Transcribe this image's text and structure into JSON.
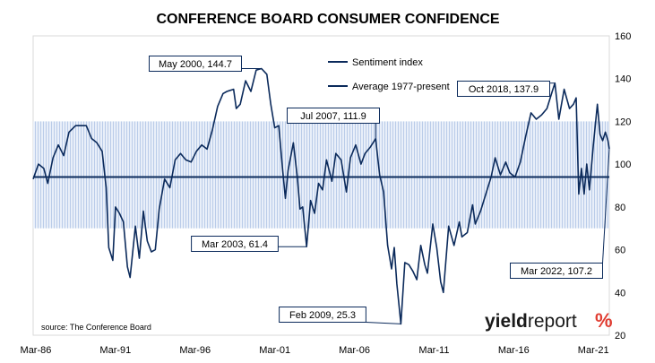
{
  "chart_data": {
    "type": "line",
    "title": "CONFERENCE BOARD CONSUMER CONFIDENCE",
    "source": "source: The Conference Board",
    "brand": {
      "text_a": "yield",
      "text_b": "report",
      "symbol": "%"
    },
    "colors": {
      "series": "#0b2a5b",
      "band": "#dce6f5",
      "band_hatch": "#aec3e6",
      "brand_red": "#e03c31",
      "brand_green": "#2ea84a",
      "text": "#000000"
    },
    "x_range": [
      "1986-01",
      "2022-03"
    ],
    "x_ticks": [
      {
        "label": "Mar-86",
        "date": "1986-03"
      },
      {
        "label": "Mar-91",
        "date": "1991-03"
      },
      {
        "label": "Mar-96",
        "date": "1996-03"
      },
      {
        "label": "Mar-01",
        "date": "2001-03"
      },
      {
        "label": "Mar-06",
        "date": "2006-03"
      },
      {
        "label": "Mar-11",
        "date": "2011-03"
      },
      {
        "label": "Mar-16",
        "date": "2016-03"
      },
      {
        "label": "Mar-21",
        "date": "2021-03"
      }
    ],
    "y_range": [
      20,
      160
    ],
    "y_ticks": [
      20,
      40,
      60,
      80,
      100,
      120,
      140,
      160
    ],
    "y_axis_position": "right",
    "grid": false,
    "band": {
      "from": 70,
      "to": 120
    },
    "series": [
      {
        "name": "Sentiment index",
        "points": [
          [
            "1986-01",
            93
          ],
          [
            "1986-05",
            100
          ],
          [
            "1986-09",
            98
          ],
          [
            "1986-12",
            91
          ],
          [
            "1987-04",
            103
          ],
          [
            "1987-08",
            109
          ],
          [
            "1987-12",
            104
          ],
          [
            "1988-04",
            115
          ],
          [
            "1988-09",
            118
          ],
          [
            "1989-01",
            118
          ],
          [
            "1989-05",
            118
          ],
          [
            "1989-09",
            112
          ],
          [
            "1990-01",
            110
          ],
          [
            "1990-05",
            106
          ],
          [
            "1990-08",
            89
          ],
          [
            "1990-10",
            61
          ],
          [
            "1991-01",
            55
          ],
          [
            "1991-03",
            80
          ],
          [
            "1991-06",
            77
          ],
          [
            "1991-09",
            73
          ],
          [
            "1991-12",
            52
          ],
          [
            "1992-02",
            47
          ],
          [
            "1992-06",
            71
          ],
          [
            "1992-09",
            56
          ],
          [
            "1992-12",
            78
          ],
          [
            "1993-03",
            64
          ],
          [
            "1993-06",
            59
          ],
          [
            "1993-09",
            60
          ],
          [
            "1993-12",
            79
          ],
          [
            "1994-04",
            93
          ],
          [
            "1994-08",
            89
          ],
          [
            "1994-12",
            102
          ],
          [
            "1995-04",
            105
          ],
          [
            "1995-08",
            102
          ],
          [
            "1995-12",
            101
          ],
          [
            "1996-04",
            106
          ],
          [
            "1996-08",
            109
          ],
          [
            "1996-12",
            107
          ],
          [
            "1997-04",
            116
          ],
          [
            "1997-08",
            127
          ],
          [
            "1997-12",
            133
          ],
          [
            "1998-03",
            134
          ],
          [
            "1998-08",
            135
          ],
          [
            "1998-10",
            126
          ],
          [
            "1999-01",
            128
          ],
          [
            "1999-05",
            139
          ],
          [
            "1999-09",
            134
          ],
          [
            "2000-01",
            144
          ],
          [
            "2000-05",
            144.7
          ],
          [
            "2000-09",
            142
          ],
          [
            "2000-12",
            128
          ],
          [
            "2001-03",
            117
          ],
          [
            "2001-06",
            118
          ],
          [
            "2001-09",
            97
          ],
          [
            "2001-11",
            84
          ],
          [
            "2002-01",
            97
          ],
          [
            "2002-05",
            110
          ],
          [
            "2002-08",
            94
          ],
          [
            "2002-10",
            79
          ],
          [
            "2002-12",
            80
          ],
          [
            "2003-03",
            61.4
          ],
          [
            "2003-06",
            83
          ],
          [
            "2003-09",
            77
          ],
          [
            "2003-12",
            91
          ],
          [
            "2004-03",
            88
          ],
          [
            "2004-06",
            102
          ],
          [
            "2004-10",
            92
          ],
          [
            "2005-01",
            105
          ],
          [
            "2005-05",
            102
          ],
          [
            "2005-09",
            87
          ],
          [
            "2005-12",
            103
          ],
          [
            "2006-04",
            109
          ],
          [
            "2006-08",
            100
          ],
          [
            "2006-11",
            105
          ],
          [
            "2007-03",
            108
          ],
          [
            "2007-07",
            111.9
          ],
          [
            "2007-10",
            95
          ],
          [
            "2008-01",
            87
          ],
          [
            "2008-04",
            62
          ],
          [
            "2008-07",
            51
          ],
          [
            "2008-09",
            61
          ],
          [
            "2008-11",
            44
          ],
          [
            "2009-02",
            25.3
          ],
          [
            "2009-05",
            54
          ],
          [
            "2009-08",
            53
          ],
          [
            "2009-11",
            50
          ],
          [
            "2010-02",
            46
          ],
          [
            "2010-05",
            62
          ],
          [
            "2010-08",
            53
          ],
          [
            "2010-10",
            49
          ],
          [
            "2011-02",
            72
          ],
          [
            "2011-05",
            61
          ],
          [
            "2011-08",
            45
          ],
          [
            "2011-10",
            40
          ],
          [
            "2012-02",
            71
          ],
          [
            "2012-06",
            62
          ],
          [
            "2012-10",
            73
          ],
          [
            "2012-12",
            66
          ],
          [
            "2013-04",
            68
          ],
          [
            "2013-08",
            81
          ],
          [
            "2013-10",
            72
          ],
          [
            "2014-02",
            78
          ],
          [
            "2014-06",
            86
          ],
          [
            "2014-10",
            94
          ],
          [
            "2015-01",
            103
          ],
          [
            "2015-05",
            95
          ],
          [
            "2015-09",
            101
          ],
          [
            "2015-12",
            96
          ],
          [
            "2016-04",
            94
          ],
          [
            "2016-08",
            101
          ],
          [
            "2016-12",
            113
          ],
          [
            "2017-04",
            124
          ],
          [
            "2017-08",
            121
          ],
          [
            "2017-12",
            123
          ],
          [
            "2018-04",
            126
          ],
          [
            "2018-08",
            134
          ],
          [
            "2018-10",
            137.9
          ],
          [
            "2019-01",
            121
          ],
          [
            "2019-05",
            135
          ],
          [
            "2019-09",
            126
          ],
          [
            "2019-12",
            128
          ],
          [
            "2020-02",
            131
          ],
          [
            "2020-04",
            86
          ],
          [
            "2020-06",
            98
          ],
          [
            "2020-08",
            86
          ],
          [
            "2020-10",
            100
          ],
          [
            "2020-12",
            88
          ],
          [
            "2021-03",
            109
          ],
          [
            "2021-06",
            128
          ],
          [
            "2021-08",
            114
          ],
          [
            "2021-10",
            111
          ],
          [
            "2021-12",
            115
          ],
          [
            "2022-02",
            111
          ],
          [
            "2022-03",
            107.2
          ]
        ]
      },
      {
        "name": "Average 1977-present",
        "value": 94
      }
    ],
    "annotations": [
      {
        "label": "May 2000, 144.7",
        "date": "2000-05",
        "value": 144.7
      },
      {
        "label": "Oct 2018, 137.9",
        "date": "2018-10",
        "value": 137.9
      },
      {
        "label": "Jul 2007, 111.9",
        "date": "2007-07",
        "value": 111.9
      },
      {
        "label": "Mar 2003, 61.4",
        "date": "2003-03",
        "value": 61.4
      },
      {
        "label": "Feb 2009, 25.3",
        "date": "2009-02",
        "value": 25.3
      },
      {
        "label": "Mar 2022, 107.2",
        "date": "2022-03",
        "value": 107.2
      }
    ],
    "legend_placement": "top-center"
  }
}
